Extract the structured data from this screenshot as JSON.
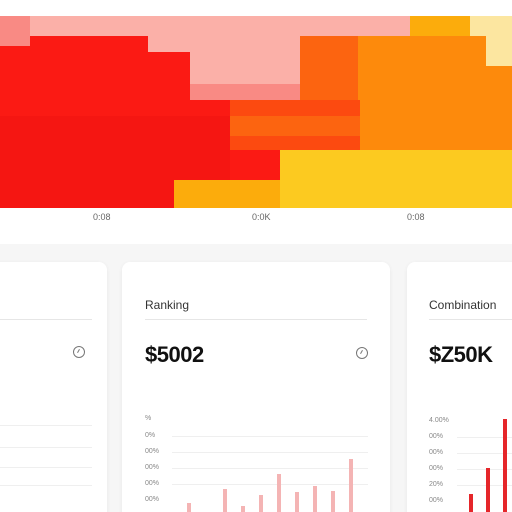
{
  "heatmap": {
    "x_tick_labels": [
      "0:08",
      "0:0K",
      "0:08"
    ],
    "colors": {
      "light_pink": "#fbb0a8",
      "pink": "#f98a84",
      "red": "#fb1a14",
      "deep_red": "#f51612",
      "red_orange": "#fc4a10",
      "orange_red": "#fc6410",
      "orange": "#fd8a0c",
      "amber": "#fcac0c",
      "yellow": "#fcca20",
      "light_yellow": "#fce6a0",
      "white": "#ffffff"
    }
  },
  "cards": [
    {
      "title": "",
      "value": "",
      "tick_labels": []
    },
    {
      "title": "Ranking",
      "value": "$5002",
      "tick_labels": [
        "%",
        "0%",
        "00%",
        "00%",
        "00%",
        "00%"
      ],
      "bar_color": "#f4b4b4",
      "chart_data": {
        "type": "bar",
        "values": [
          0.12,
          0.0,
          0.3,
          0.08,
          0.22,
          0.5,
          0.26,
          0.34,
          0.28,
          0.7
        ]
      }
    },
    {
      "title": "Combination",
      "value": "$Z50K",
      "tick_labels": [
        "4.00%",
        "00%",
        "00%",
        "00%",
        "20%",
        "00%"
      ],
      "bar_color": "#e5262a",
      "chart_data": {
        "type": "bar",
        "values": [
          0.18,
          0.45,
          0.95
        ]
      }
    }
  ]
}
